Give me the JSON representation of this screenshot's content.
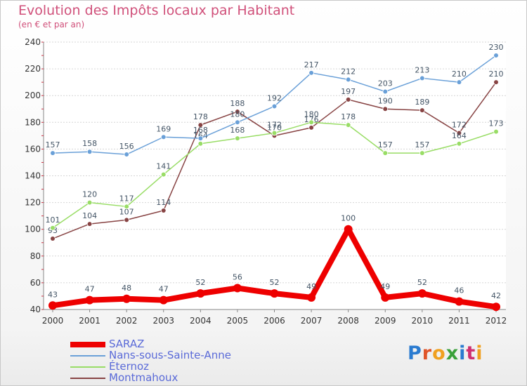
{
  "title": "Evolution des Impôts locaux par Habitant",
  "subtitle": "(en € et par an)",
  "logo_text": "Proxiti",
  "chart_data": {
    "type": "line",
    "title": "Evolution des Impôts locaux par Habitant",
    "subtitle": "(en € et par an)",
    "xlabel": "",
    "ylabel": "",
    "ylim": [
      40,
      240
    ],
    "yticks": [
      40,
      60,
      80,
      100,
      120,
      140,
      160,
      180,
      200,
      220,
      240
    ],
    "categories": [
      "2000",
      "2001",
      "2002",
      "2003",
      "2004",
      "2005",
      "2006",
      "2007",
      "2008",
      "2009",
      "2010",
      "2011",
      "2012"
    ],
    "legend_position": "bottom-left",
    "series": [
      {
        "name": "SARAZ",
        "color": "#ee0000",
        "values": [
          43,
          47,
          48,
          47,
          52,
          56,
          52,
          49,
          100,
          49,
          52,
          46,
          42
        ]
      },
      {
        "name": "Nans-sous-Sainte-Anne",
        "color": "#6aa0d8",
        "values": [
          157,
          158,
          156,
          169,
          168,
          180,
          192,
          217,
          212,
          203,
          213,
          210,
          230
        ]
      },
      {
        "name": "Éternoz",
        "color": "#99dd66",
        "values": [
          101,
          120,
          117,
          141,
          164,
          168,
          172,
          180,
          178,
          157,
          157,
          164,
          173
        ]
      },
      {
        "name": "Montmahoux",
        "color": "#884444",
        "values": [
          93,
          104,
          107,
          114,
          178,
          188,
          170,
          176,
          197,
          190,
          189,
          172,
          210
        ]
      }
    ]
  }
}
